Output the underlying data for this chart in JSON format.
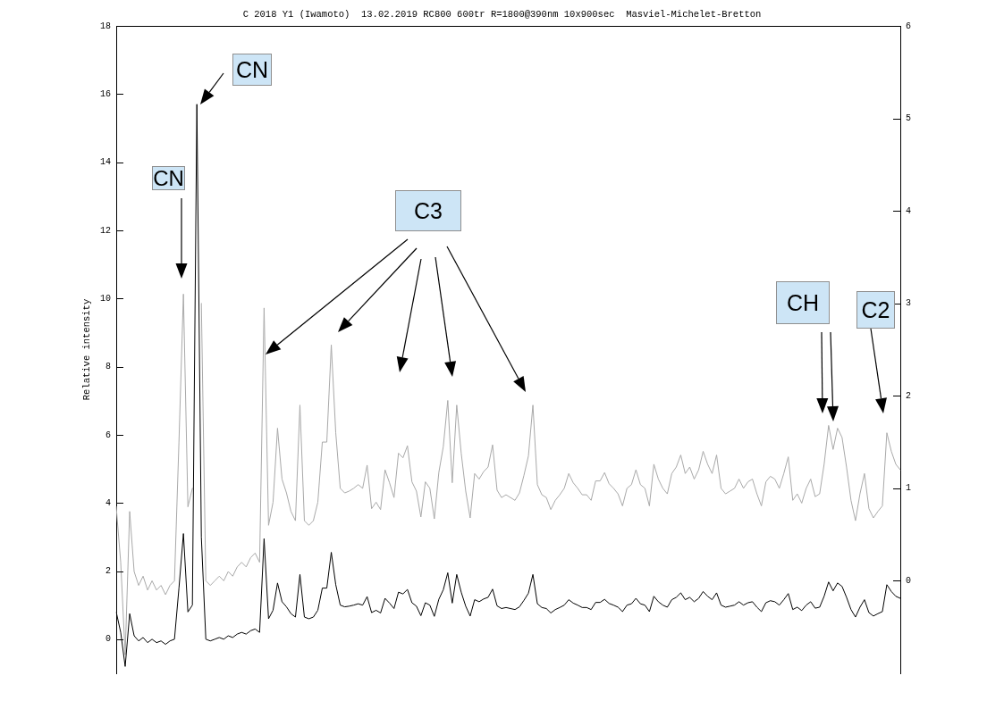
{
  "chart_data": {
    "type": "line",
    "title": "C 2018 Y1 (Iwamoto)  13.02.2019 RC800 600tr R=1800@390nm 10x900sec  Masviel-Michelet-Bretton",
    "ylabel": "Relative intensity",
    "categories": [
      null,
      null,
      null,
      null,
      null,
      null,
      null,
      null,
      null,
      null,
      null,
      null,
      null,
      null,
      null,
      null,
      null,
      null,
      null,
      null,
      null,
      null,
      null,
      null,
      null,
      null,
      null,
      null,
      null,
      null,
      null,
      null,
      null,
      null,
      null,
      null,
      null,
      null,
      null,
      null,
      null,
      null,
      null,
      null,
      null,
      null,
      null,
      null,
      null,
      null,
      null,
      null,
      null,
      null,
      null,
      null,
      null,
      null,
      null,
      null,
      null,
      null,
      null,
      null,
      null,
      null,
      null,
      null,
      null,
      null,
      null,
      null,
      null,
      null,
      null,
      null,
      null,
      null,
      null,
      null,
      null,
      null,
      null,
      null,
      null,
      null,
      null,
      null,
      null,
      null,
      null,
      null,
      null,
      null,
      null,
      null,
      null,
      null,
      null,
      null,
      null,
      null,
      null,
      null,
      null,
      null,
      null,
      null,
      null,
      null,
      null,
      null,
      null,
      null,
      null,
      null,
      null,
      null,
      null,
      null,
      null,
      null,
      null,
      null,
      null,
      null,
      null,
      null,
      null,
      null,
      null,
      null,
      null,
      null,
      null,
      null,
      null,
      null,
      null,
      null,
      null,
      null,
      null,
      null,
      null,
      null,
      null,
      null,
      null,
      null,
      null,
      null,
      null,
      null,
      null,
      null,
      null,
      null,
      null,
      null,
      null,
      null,
      null,
      null,
      null,
      null,
      null,
      null,
      null,
      null,
      null,
      null,
      null,
      null,
      null,
      null
    ],
    "series": [
      {
        "color": "#000000",
        "values": [
          0.8,
          0.2,
          -0.8,
          0.75,
          0.1,
          -0.05,
          0.05,
          -0.1,
          0,
          -0.1,
          -0.05,
          -0.15,
          -0.05,
          0,
          1.5,
          3.1,
          0.8,
          1.0,
          15.7,
          3.0,
          0,
          -0.05,
          0,
          0.05,
          0,
          0.1,
          0.05,
          0.15,
          0.2,
          0.15,
          0.25,
          0.3,
          0.2,
          2.95,
          0.6,
          0.85,
          1.65,
          1.1,
          0.95,
          0.75,
          0.65,
          1.9,
          0.65,
          0.6,
          0.65,
          0.85,
          1.5,
          1.5,
          2.55,
          1.6,
          1.0,
          0.95,
          0.97,
          1.0,
          1.04,
          1.0,
          1.25,
          0.78,
          0.85,
          0.77,
          1.2,
          1.06,
          0.9,
          1.38,
          1.33,
          1.46,
          1.07,
          0.97,
          0.69,
          1.07,
          1.0,
          0.67,
          1.17,
          1.45,
          1.95,
          1.06,
          1.9,
          1.38,
          0.97,
          0.68,
          1.16,
          1.1,
          1.18,
          1.23,
          1.47,
          0.98,
          0.9,
          0.93,
          0.9,
          0.87,
          0.95,
          1.14,
          1.35,
          1.9,
          1.04,
          0.93,
          0.9,
          0.77,
          0.87,
          0.93,
          1.0,
          1.16,
          1.06,
          1.0,
          0.93,
          0.93,
          0.87,
          1.08,
          1.08,
          1.17,
          1.05,
          1.0,
          0.94,
          0.81,
          1.0,
          1.04,
          1.2,
          1.04,
          1.0,
          0.81,
          1.26,
          1.1,
          1.0,
          0.94,
          1.16,
          1.23,
          1.36,
          1.16,
          1.23,
          1.1,
          1.2,
          1.4,
          1.26,
          1.16,
          1.36,
          1.0,
          0.94,
          0.97,
          1.0,
          1.1,
          1.0,
          1.07,
          1.1,
          0.94,
          0.81,
          1.07,
          1.13,
          1.1,
          1.0,
          1.16,
          1.34,
          0.87,
          0.94,
          0.84,
          1.0,
          1.1,
          0.91,
          0.94,
          1.26,
          1.68,
          1.42,
          1.65,
          1.55,
          1.23,
          0.87,
          0.65,
          0.94,
          1.16,
          0.78,
          0.68,
          0.75,
          0.81,
          1.6,
          1.4,
          1.26,
          1.2
        ]
      },
      {
        "color": "#a9a9a9",
        "axis": "y2",
        "values": [
          0.8,
          0.2,
          -0.8,
          0.75,
          0.1,
          -0.05,
          0.05,
          -0.1,
          0,
          -0.1,
          -0.05,
          -0.15,
          -0.05,
          0,
          1.5,
          3.1,
          0.8,
          1.0,
          null,
          3.0,
          0,
          -0.05,
          0,
          0.05,
          0,
          0.1,
          0.05,
          0.15,
          0.2,
          0.15,
          0.25,
          0.3,
          0.2,
          2.95,
          0.6,
          0.85,
          1.65,
          1.1,
          0.95,
          0.75,
          0.65,
          1.9,
          0.65,
          0.6,
          0.65,
          0.85,
          1.5,
          1.5,
          2.55,
          1.6,
          1.0,
          0.95,
          0.97,
          1.0,
          1.04,
          1.0,
          1.25,
          0.78,
          0.85,
          0.77,
          1.2,
          1.06,
          0.9,
          1.38,
          1.33,
          1.46,
          1.07,
          0.97,
          0.69,
          1.07,
          1.0,
          0.67,
          1.17,
          1.45,
          1.95,
          1.06,
          1.9,
          1.38,
          0.97,
          0.68,
          1.16,
          1.1,
          1.18,
          1.23,
          1.47,
          0.98,
          0.9,
          0.93,
          0.9,
          0.87,
          0.95,
          1.14,
          1.35,
          1.9,
          1.04,
          0.93,
          0.9,
          0.77,
          0.87,
          0.93,
          1.0,
          1.16,
          1.06,
          1.0,
          0.93,
          0.93,
          0.87,
          1.08,
          1.08,
          1.17,
          1.05,
          1.0,
          0.94,
          0.81,
          1.0,
          1.04,
          1.2,
          1.04,
          1.0,
          0.81,
          1.26,
          1.1,
          1.0,
          0.94,
          1.16,
          1.23,
          1.36,
          1.16,
          1.23,
          1.1,
          1.2,
          1.4,
          1.26,
          1.16,
          1.36,
          1.0,
          0.94,
          0.97,
          1.0,
          1.1,
          1.0,
          1.07,
          1.1,
          0.94,
          0.81,
          1.07,
          1.13,
          1.1,
          1.0,
          1.16,
          1.34,
          0.87,
          0.94,
          0.84,
          1.0,
          1.1,
          0.91,
          0.94,
          1.26,
          1.68,
          1.42,
          1.65,
          1.55,
          1.23,
          0.87,
          0.65,
          0.94,
          1.16,
          0.78,
          0.68,
          0.75,
          0.81,
          1.6,
          1.4,
          1.26,
          1.2
        ]
      }
    ],
    "ylim": [
      -1,
      18
    ],
    "yticks": [
      0,
      2,
      4,
      6,
      8,
      10,
      12,
      14,
      16,
      18
    ],
    "y2lim": [
      -1,
      6
    ],
    "y2ticks": [
      0,
      1,
      2,
      3,
      4,
      5,
      6
    ],
    "annotations": [
      "CN",
      "CN",
      "C3",
      "CH",
      "C2"
    ],
    "grid": false,
    "legend": false,
    "marker": "none",
    "line_style": "solid"
  }
}
